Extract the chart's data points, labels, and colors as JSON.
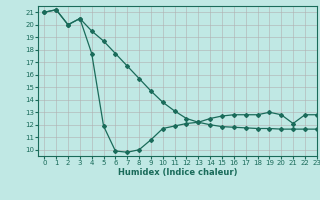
{
  "xlabel": "Humidex (Indice chaleur)",
  "bg_color": "#c0e8e4",
  "grid_color": "#b0b0b0",
  "line_color": "#1a6b5a",
  "xlim": [
    -0.5,
    23
  ],
  "ylim": [
    9.5,
    21.5
  ],
  "xticks": [
    0,
    1,
    2,
    3,
    4,
    5,
    6,
    7,
    8,
    9,
    10,
    11,
    12,
    13,
    14,
    15,
    16,
    17,
    18,
    19,
    20,
    21,
    22,
    23
  ],
  "yticks": [
    10,
    11,
    12,
    13,
    14,
    15,
    16,
    17,
    18,
    19,
    20,
    21
  ],
  "line1_x": [
    0,
    1,
    2,
    3,
    4,
    5,
    6,
    7,
    8,
    9,
    10,
    11,
    12,
    13,
    14,
    15,
    16,
    17,
    18,
    19,
    20,
    21,
    22,
    23
  ],
  "line1_y": [
    21.0,
    21.2,
    20.0,
    20.5,
    17.7,
    11.9,
    9.9,
    9.8,
    10.0,
    10.8,
    11.7,
    11.9,
    12.1,
    12.2,
    12.5,
    12.7,
    12.8,
    12.8,
    12.8,
    13.0,
    12.8,
    12.1,
    12.8,
    12.8
  ],
  "line2_x": [
    0,
    1,
    2,
    3,
    4,
    5,
    6,
    7,
    8,
    9,
    10,
    11,
    12,
    13,
    14,
    15,
    16,
    17,
    18,
    19,
    20,
    21,
    22,
    23
  ],
  "line2_y": [
    21.0,
    21.2,
    20.0,
    20.5,
    19.5,
    18.7,
    17.7,
    16.7,
    15.7,
    14.7,
    13.8,
    13.1,
    12.5,
    12.2,
    12.0,
    11.85,
    11.8,
    11.75,
    11.7,
    11.7,
    11.65,
    11.65,
    11.65,
    11.65
  ]
}
